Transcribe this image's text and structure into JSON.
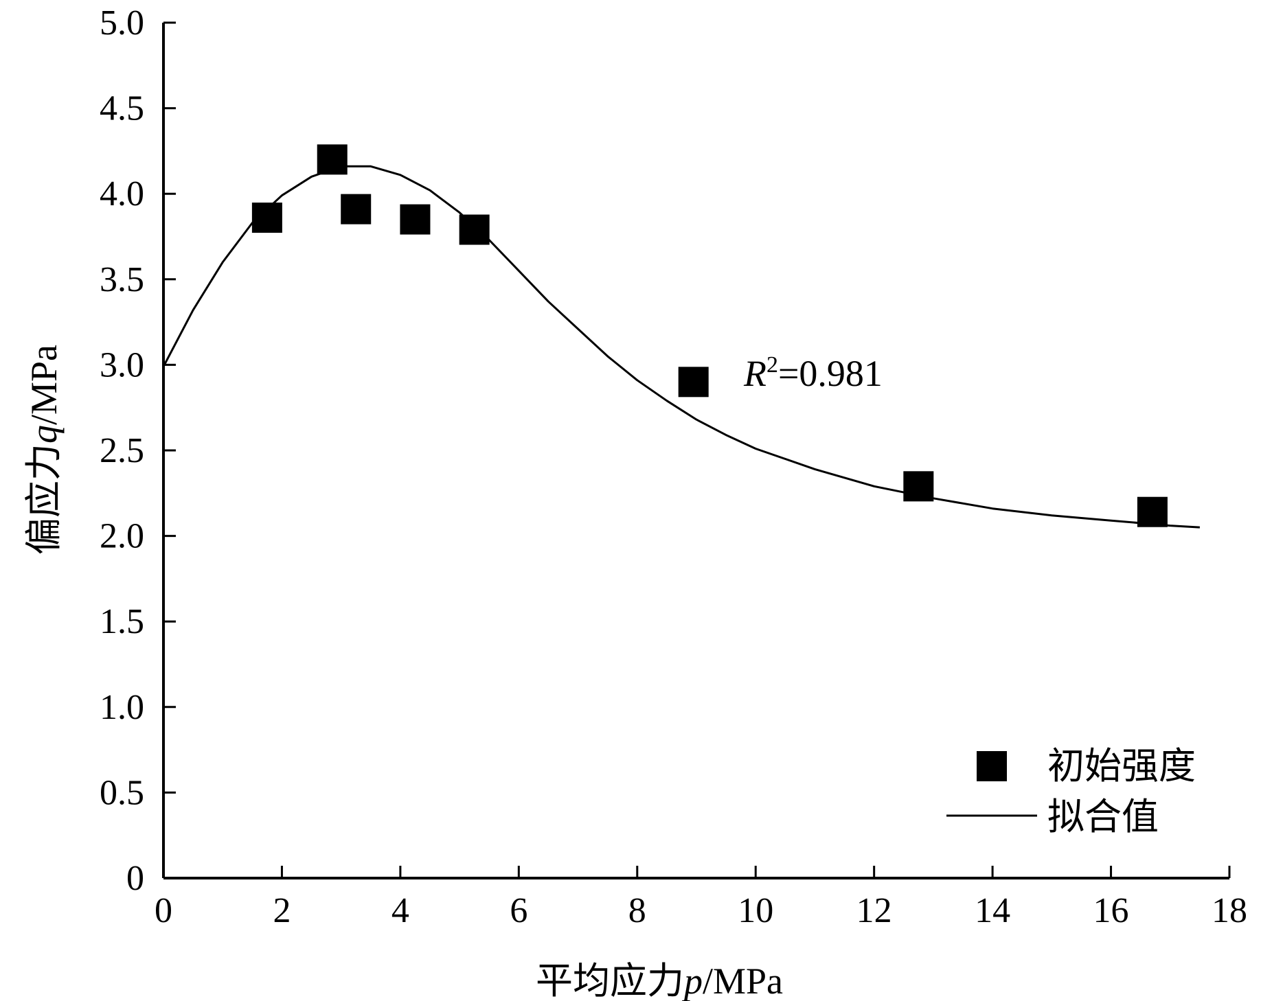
{
  "chart_data": {
    "type": "scatter",
    "xlabel_prefix": "平均应力",
    "xlabel_var": "p",
    "xlabel_unit": "/MPa",
    "ylabel_prefix": "偏应力",
    "ylabel_var": "q",
    "ylabel_unit": "/MPa",
    "xlim": [
      0,
      18
    ],
    "ylim": [
      0,
      5.0
    ],
    "x_ticks": [
      0,
      2,
      4,
      6,
      8,
      10,
      12,
      14,
      16,
      18
    ],
    "x_tick_labels": [
      "0",
      "2",
      "4",
      "6",
      "8",
      "10",
      "12",
      "14",
      "16",
      "18"
    ],
    "y_ticks": [
      0,
      0.5,
      1.0,
      1.5,
      2.0,
      2.5,
      3.0,
      3.5,
      4.0,
      4.5,
      5.0
    ],
    "y_tick_labels": [
      "0",
      "0.5",
      "1.0",
      "1.5",
      "2.0",
      "2.5",
      "3.0",
      "3.5",
      "4.0",
      "4.5",
      "5.0"
    ],
    "grid": false,
    "legend_position": "bottom-right",
    "series": [
      {
        "name": "初始强度",
        "kind": "scatter",
        "marker": "square",
        "color": "#000000",
        "points": [
          {
            "x": 1.75,
            "y": 3.86
          },
          {
            "x": 2.85,
            "y": 4.2
          },
          {
            "x": 3.25,
            "y": 3.91
          },
          {
            "x": 4.25,
            "y": 3.85
          },
          {
            "x": 5.25,
            "y": 3.79
          },
          {
            "x": 8.95,
            "y": 2.9
          },
          {
            "x": 12.75,
            "y": 2.29
          },
          {
            "x": 16.7,
            "y": 2.14
          }
        ]
      },
      {
        "name": "拟合值",
        "kind": "line",
        "color": "#000000",
        "points": [
          {
            "x": 0.0,
            "y": 2.99
          },
          {
            "x": 0.5,
            "y": 3.32
          },
          {
            "x": 1.0,
            "y": 3.6
          },
          {
            "x": 1.5,
            "y": 3.83
          },
          {
            "x": 2.0,
            "y": 3.99
          },
          {
            "x": 2.5,
            "y": 4.1
          },
          {
            "x": 3.0,
            "y": 4.16
          },
          {
            "x": 3.5,
            "y": 4.16
          },
          {
            "x": 4.0,
            "y": 4.11
          },
          {
            "x": 4.5,
            "y": 4.02
          },
          {
            "x": 5.0,
            "y": 3.89
          },
          {
            "x": 5.5,
            "y": 3.73
          },
          {
            "x": 6.0,
            "y": 3.55
          },
          {
            "x": 6.5,
            "y": 3.37
          },
          {
            "x": 7.0,
            "y": 3.21
          },
          {
            "x": 7.5,
            "y": 3.05
          },
          {
            "x": 8.0,
            "y": 2.91
          },
          {
            "x": 8.5,
            "y": 2.79
          },
          {
            "x": 9.0,
            "y": 2.68
          },
          {
            "x": 9.5,
            "y": 2.59
          },
          {
            "x": 10.0,
            "y": 2.51
          },
          {
            "x": 11.0,
            "y": 2.39
          },
          {
            "x": 12.0,
            "y": 2.29
          },
          {
            "x": 13.0,
            "y": 2.22
          },
          {
            "x": 14.0,
            "y": 2.16
          },
          {
            "x": 15.0,
            "y": 2.12
          },
          {
            "x": 16.0,
            "y": 2.09
          },
          {
            "x": 17.0,
            "y": 2.06
          },
          {
            "x": 17.5,
            "y": 2.05
          }
        ]
      }
    ],
    "annotation": {
      "var": "R",
      "sup": "2",
      "value_text": "=0.981",
      "x": 9.8,
      "y": 2.95
    }
  }
}
